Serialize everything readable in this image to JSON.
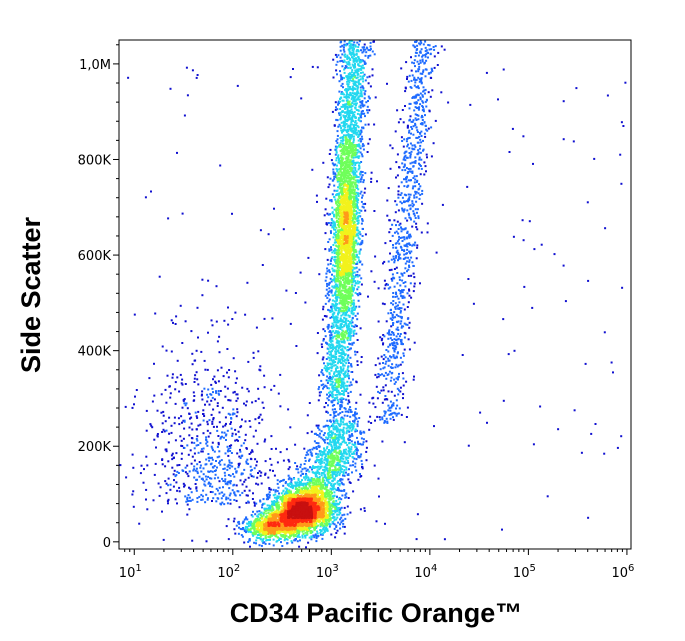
{
  "chart_data": {
    "type": "density-scatter",
    "title": "",
    "xlabel": "CD34 Pacific Orange™",
    "ylabel": "Side Scatter",
    "x_scale": "log",
    "xlim": [
      7,
      1100000
    ],
    "ylim": [
      -15000,
      1050000
    ],
    "x_ticks": [
      {
        "value": 10,
        "label": "10",
        "exp": "1"
      },
      {
        "value": 100,
        "label": "10",
        "exp": "2"
      },
      {
        "value": 1000,
        "label": "10",
        "exp": "3"
      },
      {
        "value": 10000,
        "label": "10",
        "exp": "4"
      },
      {
        "value": 100000,
        "label": "10",
        "exp": "5"
      },
      {
        "value": 1000000,
        "label": "10",
        "exp": "6"
      }
    ],
    "y_ticks": [
      {
        "value": 0,
        "label": "0"
      },
      {
        "value": 200000,
        "label": "200K"
      },
      {
        "value": 400000,
        "label": "400K"
      },
      {
        "value": 600000,
        "label": "600K"
      },
      {
        "value": 800000,
        "label": "800K"
      },
      {
        "value": 1000000,
        "label": "1,0M"
      }
    ],
    "colormap": [
      "#1010d0",
      "#1e6bff",
      "#22d8ef",
      "#6fff5a",
      "#f2f21c",
      "#ff9a1a",
      "#ff2a10",
      "#c81010"
    ],
    "populations": [
      {
        "name": "",
        "x_median": 550,
        "y_median": 60000,
        "density": "highest"
      },
      {
        "name": "",
        "x_median": 1400,
        "y_median": 650000,
        "density": "high"
      },
      {
        "name": "",
        "x_median": 8000,
        "y_median": 850000,
        "density": "low"
      },
      {
        "name": "",
        "x_median": 1300,
        "y_median": 230000,
        "density": "medium"
      }
    ],
    "grid": false,
    "legend": "none"
  }
}
